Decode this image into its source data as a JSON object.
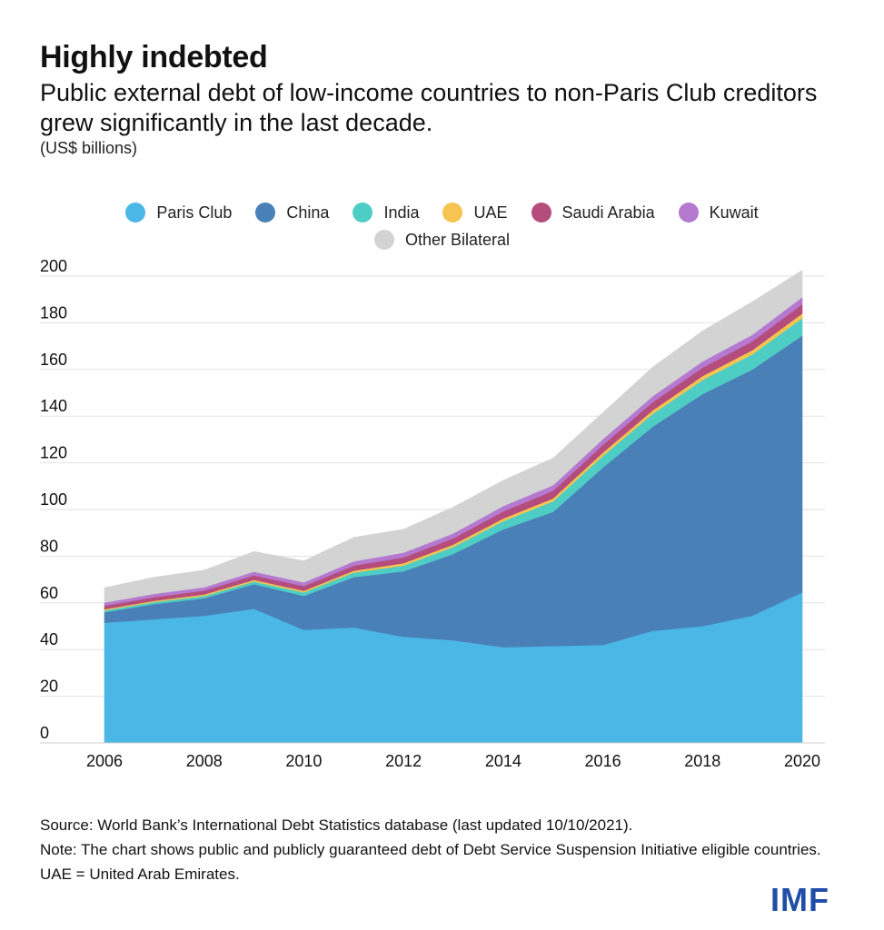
{
  "title": "Highly indebted",
  "subtitle": "Public external debt of low-income countries to non-Paris Club creditors grew significantly in the last decade.",
  "units": "(US$ billions)",
  "legend": [
    {
      "label": "Paris Club",
      "color": "#4ab7e6"
    },
    {
      "label": "China",
      "color": "#4a80b8"
    },
    {
      "label": "India",
      "color": "#4ecdc4"
    },
    {
      "label": "UAE",
      "color": "#f5c451"
    },
    {
      "label": "Saudi Arabia",
      "color": "#b44c7c"
    },
    {
      "label": "Kuwait",
      "color": "#b579d0"
    },
    {
      "label": "Other Bilateral",
      "color": "#d3d3d3"
    }
  ],
  "chart_data": {
    "type": "area",
    "stacked": true,
    "x": [
      2006,
      2007,
      2008,
      2009,
      2010,
      2011,
      2012,
      2013,
      2014,
      2015,
      2016,
      2017,
      2018,
      2019,
      2020
    ],
    "x_ticks": [
      "2006",
      "2008",
      "2010",
      "2012",
      "2014",
      "2016",
      "2018",
      "2020"
    ],
    "y_ticks": [
      "0",
      "20",
      "40",
      "60",
      "80",
      "100",
      "120",
      "140",
      "160",
      "180",
      "200"
    ],
    "ylim": [
      0,
      200
    ],
    "grid": true,
    "legend_position": "top",
    "series": [
      {
        "name": "Paris Club",
        "color": "#4ab7e6",
        "values": [
          51.5,
          53,
          54.5,
          57.5,
          48.5,
          49.5,
          45.5,
          44,
          41,
          41.5,
          42,
          48,
          50,
          54.5,
          64.5
        ]
      },
      {
        "name": "China",
        "color": "#4a80b8",
        "values": [
          4.5,
          6.5,
          7.5,
          10.5,
          14.5,
          21.5,
          28,
          37,
          50.5,
          57.5,
          76,
          87.5,
          99.5,
          105.5,
          110
        ]
      },
      {
        "name": "India",
        "color": "#4ecdc4",
        "values": [
          0.8,
          0.9,
          1,
          1.2,
          1.5,
          2,
          2.5,
          3,
          3.5,
          4.5,
          5,
          5.5,
          6,
          6.5,
          7.5
        ]
      },
      {
        "name": "UAE",
        "color": "#f5c451",
        "values": [
          0.5,
          0.5,
          0.6,
          0.7,
          0.7,
          0.8,
          1,
          1,
          1.2,
          1.3,
          1.4,
          1.5,
          1.7,
          1.8,
          2
        ]
      },
      {
        "name": "Saudi Arabia",
        "color": "#b44c7c",
        "values": [
          1.5,
          1.6,
          1.7,
          1.9,
          2,
          2.2,
          2.5,
          2.7,
          3,
          3.2,
          3.3,
          3.5,
          3.6,
          3.8,
          4
        ]
      },
      {
        "name": "Kuwait",
        "color": "#b579d0",
        "values": [
          1.3,
          1.4,
          1.4,
          1.6,
          1.6,
          1.8,
          2,
          2.1,
          2.3,
          2.4,
          2.5,
          2.6,
          2.7,
          2.8,
          3
        ]
      },
      {
        "name": "Other Bilateral",
        "color": "#d3d3d3",
        "values": [
          6.4,
          7.1,
          7.3,
          8.6,
          9.2,
          10.2,
          10,
          11.2,
          11,
          11.6,
          11.3,
          12.4,
          13,
          14.1,
          11.5
        ]
      }
    ]
  },
  "footer": {
    "source": "Source: World Bank’s International Debt Statistics database (last updated 10/10/2021).",
    "note": "Note: The chart shows public and publicly guaranteed debt of Debt Service Suspension Initiative eligible countries. UAE = United Arab Emirates."
  },
  "logo_text": "IMF"
}
